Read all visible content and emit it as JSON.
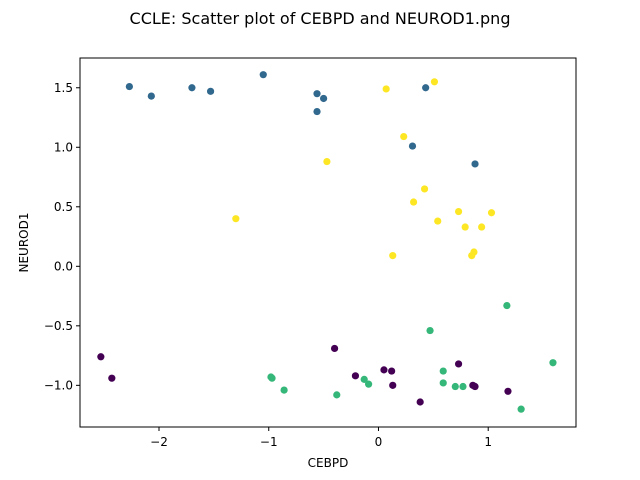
{
  "chart_data": {
    "type": "scatter",
    "title": "CCLE: Scatter plot of CEBPD and NEUROD1.png",
    "xlabel": "CEBPD",
    "ylabel": "NEUROD1",
    "xlim": [
      -2.72,
      1.8
    ],
    "ylim": [
      -1.35,
      1.75
    ],
    "x_ticks": [
      -2,
      -1,
      0,
      1
    ],
    "x_tick_labels": [
      "−2",
      "−1",
      "0",
      "1"
    ],
    "y_ticks": [
      -1.0,
      -0.5,
      0.0,
      0.5,
      1.0,
      1.5
    ],
    "y_tick_labels": [
      "−1.0",
      "−0.5",
      "0.0",
      "0.5",
      "1.0",
      "1.5"
    ],
    "grid": false,
    "legend": "none",
    "series": [
      {
        "color": "#31688e",
        "points": [
          [
            -2.27,
            1.51
          ],
          [
            -2.07,
            1.43
          ],
          [
            -1.7,
            1.5
          ],
          [
            -1.53,
            1.47
          ],
          [
            -1.05,
            1.61
          ],
          [
            -0.56,
            1.45
          ],
          [
            -0.5,
            1.41
          ],
          [
            -0.56,
            1.3
          ],
          [
            0.43,
            1.5
          ],
          [
            0.31,
            1.01
          ],
          [
            0.88,
            0.86
          ]
        ]
      },
      {
        "color": "#fde725",
        "points": [
          [
            0.51,
            1.55
          ],
          [
            0.07,
            1.49
          ],
          [
            0.23,
            1.09
          ],
          [
            -0.47,
            0.88
          ],
          [
            0.42,
            0.65
          ],
          [
            0.32,
            0.54
          ],
          [
            0.73,
            0.46
          ],
          [
            1.03,
            0.45
          ],
          [
            -1.3,
            0.4
          ],
          [
            0.54,
            0.38
          ],
          [
            0.79,
            0.33
          ],
          [
            0.94,
            0.33
          ],
          [
            0.87,
            0.12
          ],
          [
            0.85,
            0.09
          ],
          [
            0.13,
            0.09
          ]
        ]
      },
      {
        "color": "#35b779",
        "points": [
          [
            1.17,
            -0.33
          ],
          [
            0.47,
            -0.54
          ],
          [
            1.59,
            -0.81
          ],
          [
            0.59,
            -0.88
          ],
          [
            -0.98,
            -0.93
          ],
          [
            -0.97,
            -0.94
          ],
          [
            -0.13,
            -0.95
          ],
          [
            -0.09,
            -0.99
          ],
          [
            0.59,
            -0.98
          ],
          [
            0.7,
            -1.01
          ],
          [
            0.77,
            -1.01
          ],
          [
            -0.86,
            -1.04
          ],
          [
            -0.38,
            -1.08
          ],
          [
            1.3,
            -1.2
          ]
        ]
      },
      {
        "color": "#440154",
        "points": [
          [
            -2.53,
            -0.76
          ],
          [
            -2.43,
            -0.94
          ],
          [
            -0.4,
            -0.69
          ],
          [
            -0.21,
            -0.92
          ],
          [
            0.05,
            -0.87
          ],
          [
            0.12,
            -0.88
          ],
          [
            0.13,
            -1.0
          ],
          [
            0.73,
            -0.82
          ],
          [
            0.86,
            -1.0
          ],
          [
            0.88,
            -1.01
          ],
          [
            1.18,
            -1.05
          ],
          [
            0.38,
            -1.14
          ]
        ]
      }
    ]
  }
}
